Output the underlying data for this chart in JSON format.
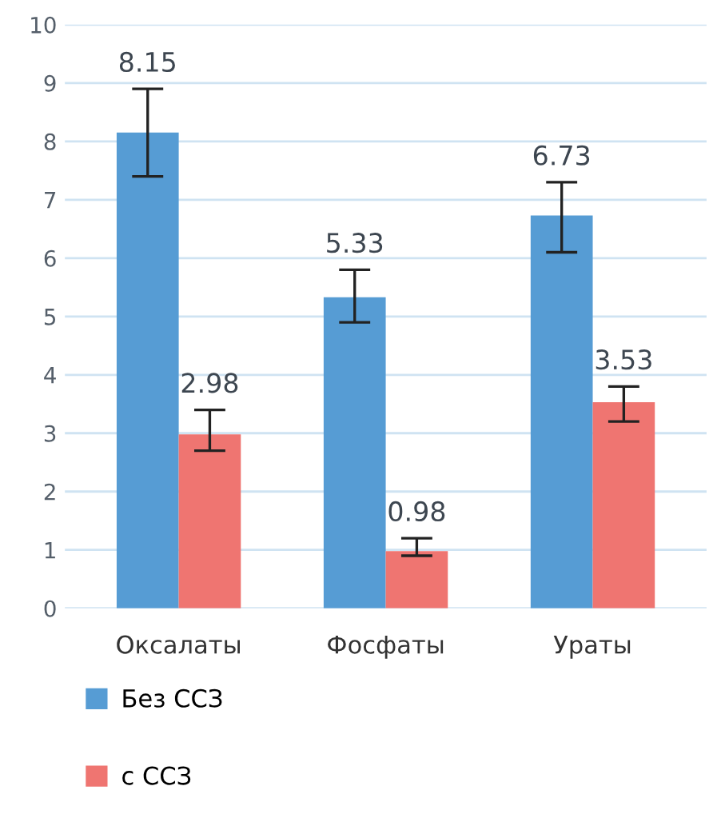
{
  "chart_data": {
    "type": "bar",
    "categories": [
      "Оксалаты",
      "Фосфаты",
      "Ураты"
    ],
    "series": [
      {
        "name": "Без ССЗ",
        "color": "#569cd4",
        "values": [
          8.15,
          5.33,
          6.73
        ],
        "errors": [
          [
            7.4,
            8.9
          ],
          [
            4.9,
            5.8
          ],
          [
            6.1,
            7.3
          ]
        ]
      },
      {
        "name": "с ССЗ",
        "color": "#ef7571",
        "values": [
          2.98,
          0.98,
          3.53
        ],
        "errors": [
          [
            2.7,
            3.4
          ],
          [
            0.9,
            1.2
          ],
          [
            3.2,
            3.8
          ]
        ]
      }
    ],
    "ylim": [
      0,
      10
    ],
    "yticks": [
      0,
      1,
      2,
      3,
      4,
      5,
      6,
      7,
      8,
      9,
      10
    ],
    "grid": "y",
    "legend": "bottom",
    "data_labels": true
  }
}
